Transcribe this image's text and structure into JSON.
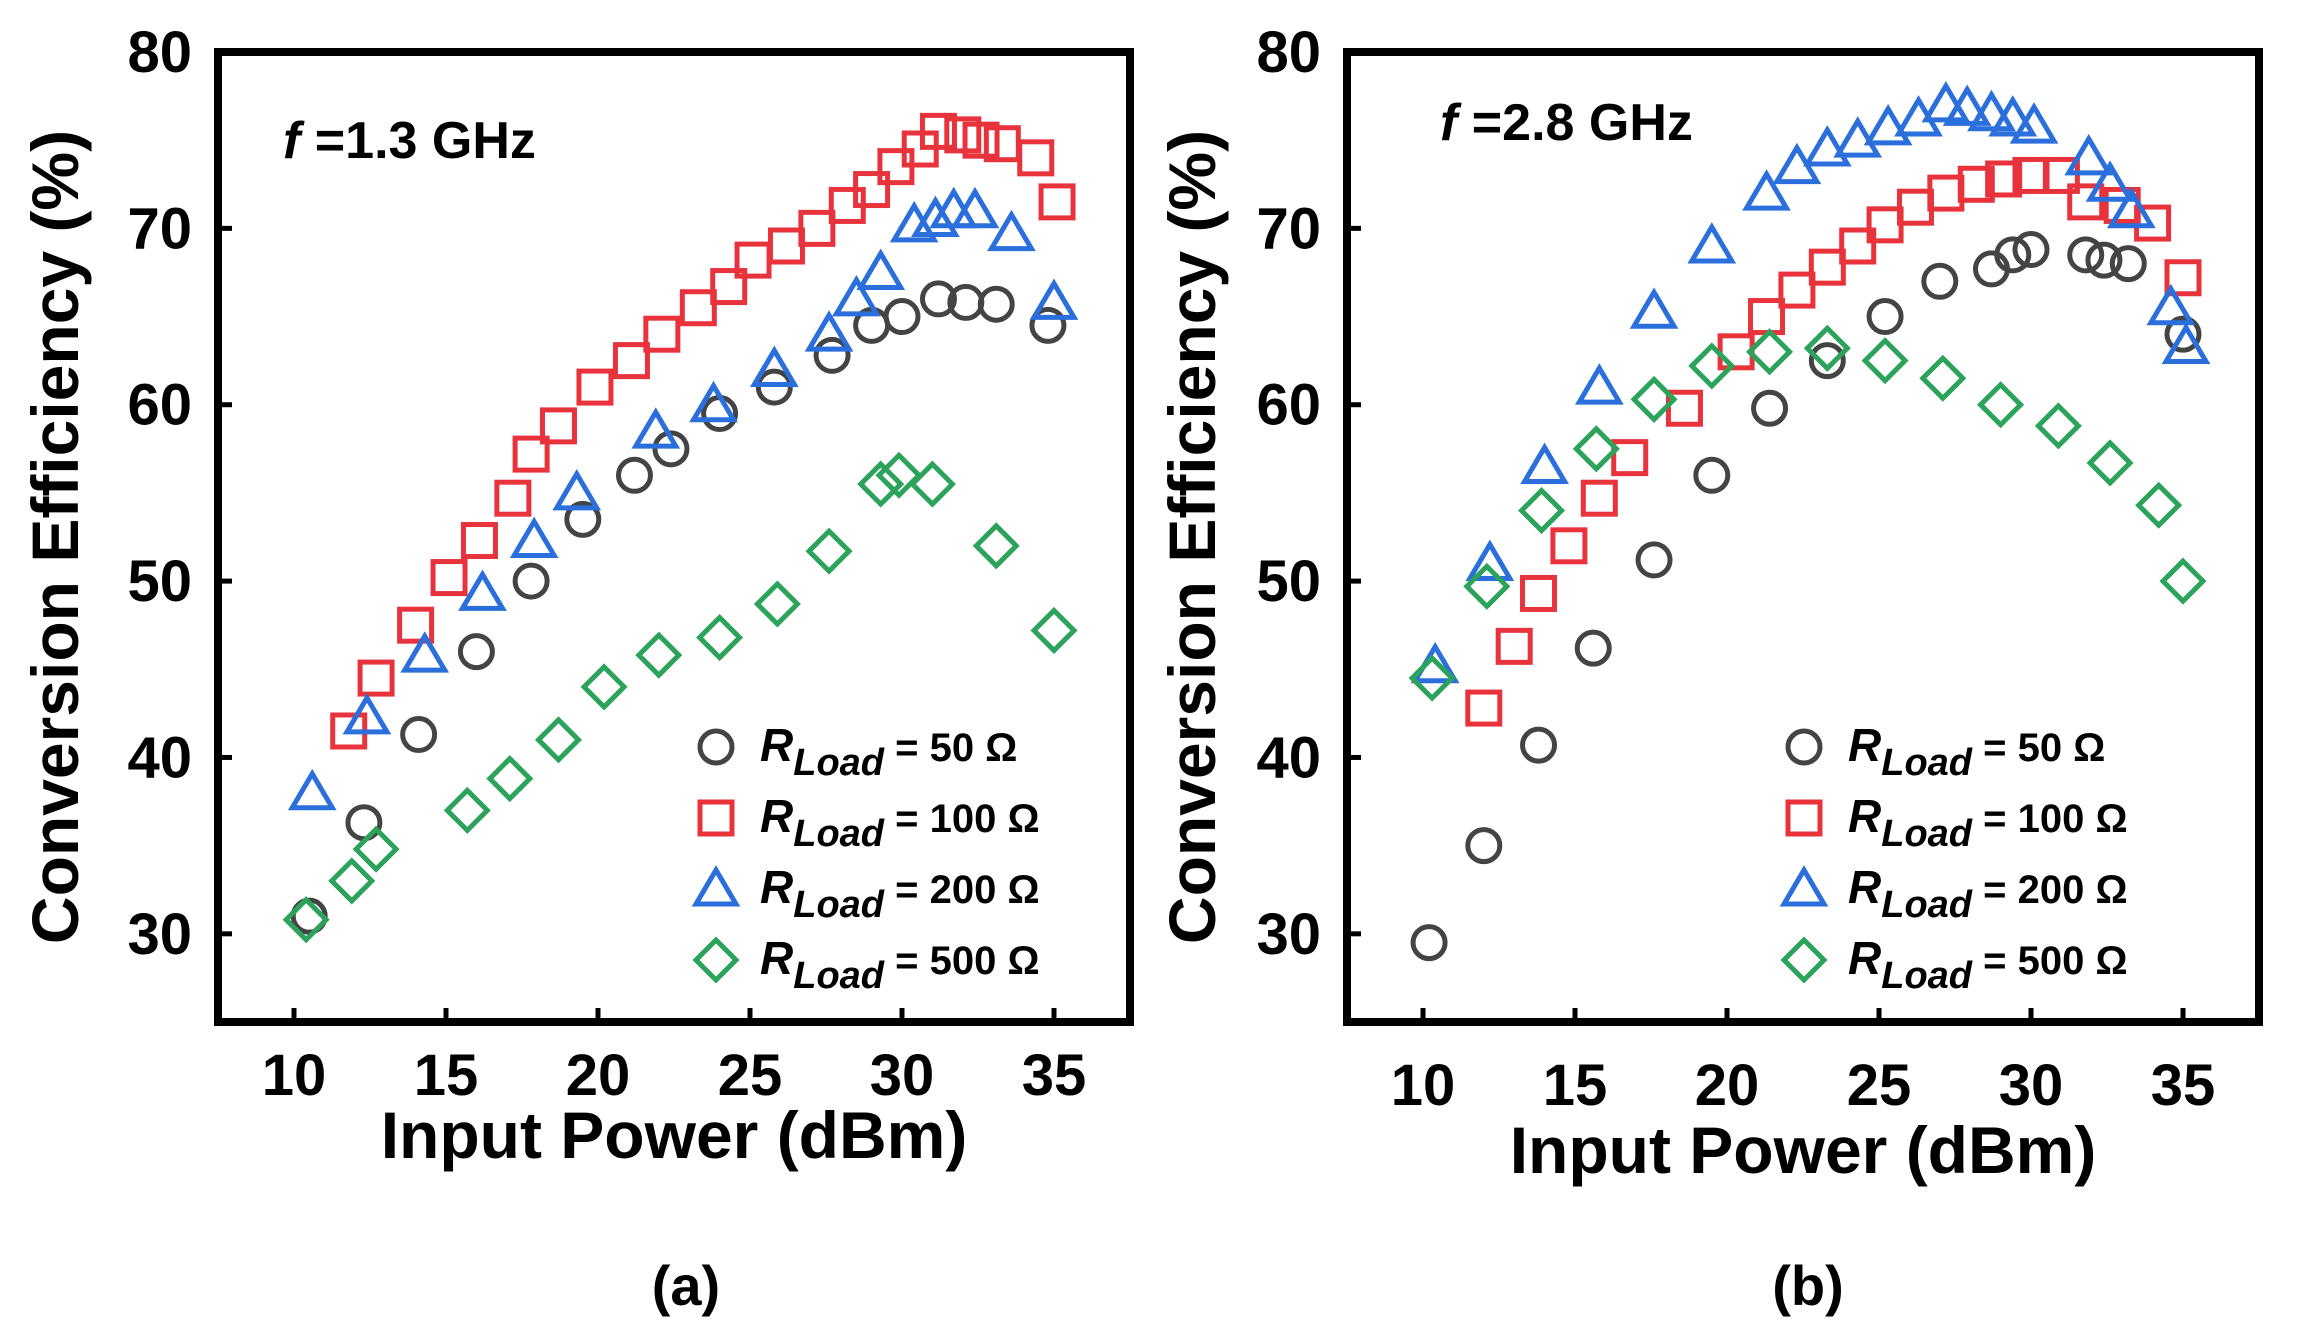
{
  "colors": {
    "50": "#444444",
    "100": "#e8323c",
    "200": "#2a6fdb",
    "500": "#2ca35a"
  },
  "chart_data": [
    {
      "type": "scatter",
      "panel_label": "(a)",
      "annotation": {
        "f": "f",
        "rest": " =1.3 GHz"
      },
      "xlabel": "Input Power (dBm)",
      "ylabel": "Conversion Efficiency (%)",
      "xlim": [
        7.5,
        37.5
      ],
      "ylim": [
        25,
        80
      ],
      "xticks": [
        "10",
        "15",
        "20",
        "25",
        "30",
        "35"
      ],
      "yticks": [
        "30",
        "40",
        "50",
        "60",
        "70",
        "80"
      ],
      "legend": {
        "position": "bottom-right"
      },
      "series": [
        {
          "key": "50",
          "marker": "circle",
          "label_r": "R",
          "label_sub": "Load",
          "label_val": " = 50 Ω",
          "x": [
            10.5,
            12.3,
            14.1,
            16.0,
            17.8,
            19.5,
            21.2,
            22.4,
            24.0,
            25.8,
            27.7,
            29.0,
            30.0,
            31.2,
            32.1,
            33.1,
            34.8
          ],
          "y": [
            31.0,
            36.3,
            41.3,
            46.0,
            50.0,
            53.5,
            56.0,
            57.5,
            59.5,
            61.0,
            62.8,
            64.5,
            65.0,
            66.0,
            65.8,
            65.7,
            64.5
          ]
        },
        {
          "key": "100",
          "marker": "square",
          "label_r": "R",
          "label_sub": "Load",
          "label_val": " = 100 Ω",
          "x": [
            11.8,
            12.7,
            14.0,
            15.1,
            16.1,
            17.2,
            17.8,
            18.7,
            19.9,
            21.1,
            22.1,
            23.3,
            24.3,
            25.1,
            26.2,
            27.2,
            28.2,
            29.0,
            29.8,
            30.6,
            31.2,
            32.0,
            32.6,
            33.3,
            34.4,
            35.1
          ],
          "y": [
            41.5,
            44.5,
            47.5,
            50.2,
            52.3,
            54.7,
            57.2,
            58.8,
            61.0,
            62.5,
            64.0,
            65.5,
            66.7,
            68.2,
            69.0,
            70.0,
            71.3,
            72.2,
            73.5,
            74.5,
            75.5,
            75.3,
            75.0,
            74.8,
            74.0,
            71.5
          ]
        },
        {
          "key": "200",
          "marker": "triangle",
          "label_r": "R",
          "label_sub": "Load",
          "label_val": " = 200 Ω",
          "x": [
            10.6,
            12.4,
            14.3,
            16.2,
            17.9,
            19.3,
            21.9,
            23.8,
            25.8,
            27.6,
            28.5,
            29.3,
            30.4,
            31.1,
            31.7,
            32.4,
            33.6,
            35.0
          ],
          "y": [
            38.0,
            42.3,
            45.8,
            49.3,
            52.3,
            55.0,
            58.5,
            60.0,
            62.0,
            64.0,
            66.0,
            67.5,
            70.2,
            70.5,
            71.0,
            71.0,
            69.7,
            65.8
          ]
        },
        {
          "key": "500",
          "marker": "diamond",
          "label_r": "R",
          "label_sub": "Load",
          "label_val": " = 500 Ω",
          "x": [
            10.4,
            11.9,
            12.7,
            15.7,
            17.1,
            18.7,
            20.2,
            22.0,
            24.0,
            25.9,
            27.6,
            29.3,
            29.9,
            31.0,
            33.1,
            35.0
          ],
          "y": [
            30.8,
            33.0,
            34.8,
            37.0,
            38.8,
            41.0,
            44.0,
            45.8,
            46.8,
            48.7,
            51.7,
            55.5,
            56.0,
            55.5,
            52.0,
            47.2
          ]
        }
      ]
    },
    {
      "type": "scatter",
      "panel_label": "(b)",
      "annotation": {
        "f": "f",
        "rest": " =2.8 GHz"
      },
      "xlabel": "Input Power (dBm)",
      "ylabel": "Conversion Efficiency (%)",
      "xlim": [
        7.5,
        37.5
      ],
      "ylim": [
        25,
        80
      ],
      "xticks": [
        "10",
        "15",
        "20",
        "25",
        "30",
        "35"
      ],
      "yticks": [
        "30",
        "40",
        "50",
        "60",
        "70",
        "80"
      ],
      "legend": {
        "position": "bottom-right"
      },
      "series": [
        {
          "key": "50",
          "marker": "circle",
          "label_r": "R",
          "label_sub": "Load",
          "label_val": " = 50 Ω",
          "x": [
            10.2,
            12.0,
            13.8,
            15.6,
            17.6,
            19.5,
            21.4,
            23.3,
            25.2,
            27.0,
            28.7,
            29.4,
            30.0,
            31.8,
            32.4,
            33.2,
            35.0
          ],
          "y": [
            29.5,
            35.0,
            40.7,
            46.2,
            51.2,
            56.0,
            59.8,
            62.5,
            65.0,
            67.0,
            67.7,
            68.5,
            68.8,
            68.5,
            68.2,
            68.0,
            64.0
          ]
        },
        {
          "key": "100",
          "marker": "square",
          "label_r": "R",
          "label_sub": "Load",
          "label_val": " = 100 Ω",
          "x": [
            12.0,
            13.0,
            13.8,
            14.8,
            15.8,
            16.8,
            18.6,
            20.3,
            21.3,
            22.3,
            23.3,
            24.3,
            25.2,
            26.2,
            27.2,
            28.2,
            29.1,
            30.0,
            31.0,
            31.8,
            33.0,
            34.0,
            35.0
          ],
          "y": [
            42.8,
            46.3,
            49.3,
            52.0,
            54.7,
            57.0,
            59.8,
            63.0,
            65.0,
            66.5,
            67.8,
            69.0,
            70.2,
            71.2,
            72.0,
            72.5,
            72.8,
            73.0,
            73.0,
            71.5,
            71.3,
            70.3,
            67.2
          ]
        },
        {
          "key": "200",
          "marker": "triangle",
          "label_r": "R",
          "label_sub": "Load",
          "label_val": " = 200 Ω",
          "x": [
            10.4,
            12.2,
            14.0,
            15.8,
            17.6,
            19.5,
            21.3,
            22.3,
            23.3,
            24.3,
            25.3,
            26.3,
            27.2,
            27.9,
            28.7,
            29.4,
            30.1,
            31.9,
            32.6,
            33.3,
            34.6,
            35.1
          ],
          "y": [
            45.2,
            51.0,
            56.5,
            61.0,
            65.3,
            69.0,
            72.0,
            73.5,
            74.5,
            75.0,
            75.7,
            76.2,
            77.0,
            76.8,
            76.5,
            76.2,
            75.8,
            74.0,
            72.5,
            71.0,
            65.5,
            63.3
          ]
        },
        {
          "key": "500",
          "marker": "diamond",
          "label_r": "R",
          "label_sub": "Load",
          "label_val": " = 500 Ω",
          "x": [
            10.3,
            12.1,
            13.9,
            15.7,
            17.6,
            19.5,
            21.4,
            23.3,
            25.2,
            27.1,
            29.0,
            30.9,
            32.6,
            34.2,
            35.0
          ],
          "y": [
            44.5,
            49.7,
            54.0,
            57.5,
            60.3,
            62.2,
            63.0,
            63.2,
            62.5,
            61.5,
            60.0,
            58.8,
            56.7,
            54.3,
            50.0
          ]
        }
      ]
    }
  ]
}
